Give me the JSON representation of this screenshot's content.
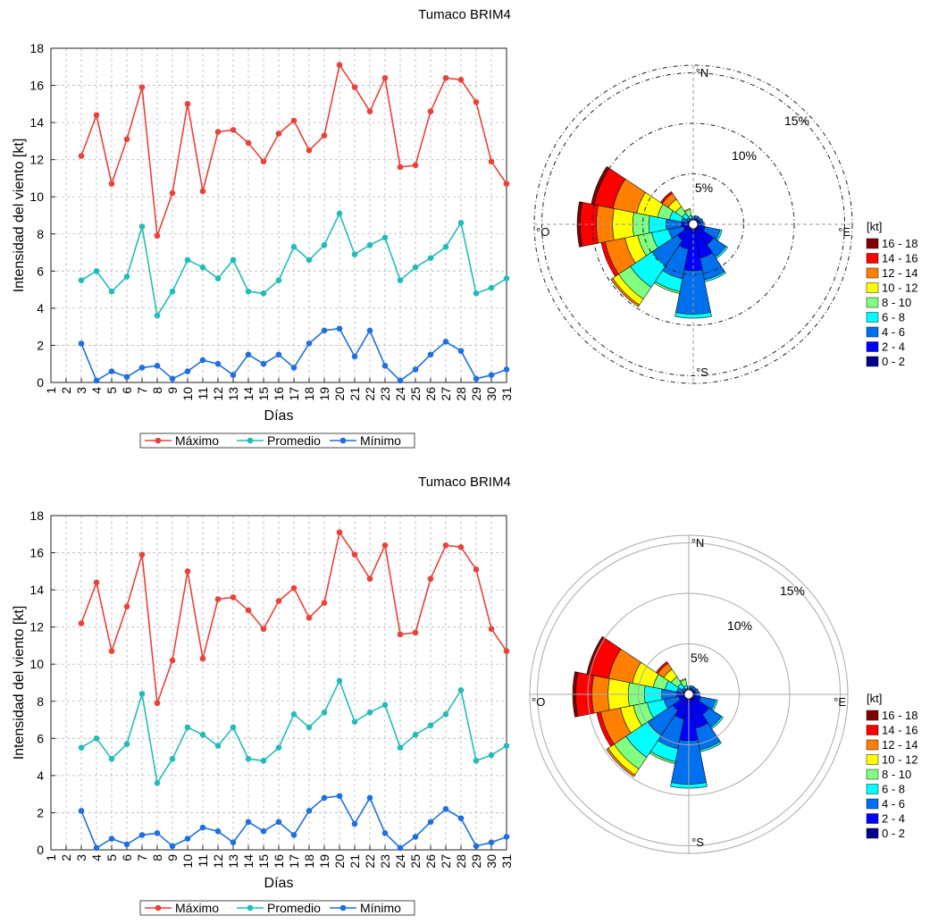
{
  "title": "Tumaco BRIM4",
  "colors": {
    "maximo": "#e8423a",
    "promedio": "#22bcb8",
    "minimo": "#1f6fe0"
  },
  "panels": [
    {
      "title": "Tumaco BRIM4",
      "rose_style": "dashed",
      "legend_labels": [
        "Máximo",
        "Promedio",
        "Mínimo"
      ],
      "rose_legend_title": "[kt]",
      "rose_legend_labels": [
        "16 - 18",
        "14 - 16",
        "12 - 14",
        "10 - 12",
        "8 - 10",
        "6 - 8",
        "4 - 6",
        "2 - 4",
        "0 - 2"
      ],
      "rose_ring_labels": [
        "5%",
        "10%",
        "15%"
      ],
      "rose_dir_labels": [
        "°N",
        "°E",
        "°S",
        "°O"
      ]
    },
    {
      "title": "Tumaco BRIM4",
      "rose_style": "solid",
      "legend_labels": [
        "Máximo",
        "Promedio",
        "Mínimo"
      ],
      "rose_legend_title": "[kt]",
      "rose_legend_labels": [
        "16 - 18",
        "14 - 16",
        "12 - 14",
        "10 - 12",
        "8 - 10",
        "6 - 8",
        "4 - 6",
        "2 - 4",
        "0 - 2"
      ],
      "rose_ring_labels": [
        "5%",
        "10%",
        "15%"
      ],
      "rose_dir_labels": [
        "°N",
        "°E",
        "°S",
        "°O"
      ]
    }
  ],
  "chart_data": [
    {
      "type": "line",
      "xlabel": "Días",
      "ylabel": "Intensidad del viento [kt]",
      "ylim": [
        0,
        18
      ],
      "yticks": [
        0,
        2,
        4,
        6,
        8,
        10,
        12,
        14,
        16,
        18
      ],
      "xlim": [
        1,
        31
      ],
      "x_tick_labels": [
        "1",
        "2",
        "3",
        "4",
        "5",
        "6",
        "7",
        "8",
        "9",
        "10",
        "11",
        "12",
        "13",
        "14",
        "15",
        "16",
        "17",
        "18",
        "19",
        "20",
        "21",
        "22",
        "23",
        "24",
        "25",
        "26",
        "27",
        "28",
        "29",
        "30",
        "31"
      ],
      "grid": true,
      "legend_placement": "bottom",
      "x": [
        3,
        4,
        5,
        6,
        7,
        8,
        9,
        10,
        11,
        12,
        13,
        14,
        15,
        16,
        17,
        18,
        19,
        20,
        21,
        22,
        23,
        24,
        25,
        26,
        27,
        28,
        29,
        30,
        31
      ],
      "series": [
        {
          "name": "Máximo",
          "values": [
            12.2,
            14.4,
            10.7,
            13.1,
            15.9,
            7.9,
            10.2,
            15.0,
            10.3,
            13.5,
            13.6,
            12.9,
            11.9,
            13.4,
            14.1,
            12.5,
            13.3,
            17.1,
            15.9,
            14.6,
            16.4,
            11.6,
            11.7,
            14.6,
            16.4,
            16.3,
            15.1,
            11.9,
            10.7
          ]
        },
        {
          "name": "Promedio",
          "values": [
            5.5,
            6.0,
            4.9,
            5.7,
            8.4,
            3.6,
            4.9,
            6.6,
            6.2,
            5.6,
            6.6,
            4.9,
            4.8,
            5.5,
            7.3,
            6.6,
            7.4,
            9.1,
            6.9,
            7.4,
            7.8,
            5.5,
            6.2,
            6.7,
            7.3,
            8.6,
            4.8,
            5.1,
            5.6
          ]
        },
        {
          "name": "Mínimo",
          "values": [
            2.1,
            0.1,
            0.6,
            0.3,
            0.8,
            0.9,
            0.2,
            0.6,
            1.2,
            1.0,
            0.4,
            1.5,
            1.0,
            1.5,
            0.8,
            2.1,
            2.8,
            2.9,
            1.4,
            2.8,
            0.9,
            0.1,
            0.7,
            1.5,
            2.2,
            1.7,
            0.2,
            0.4,
            0.7
          ]
        }
      ]
    },
    {
      "type": "rose",
      "radial_unit": "%",
      "rings": [
        5,
        10,
        15
      ],
      "bin_labels": [
        "0 - 2",
        "2 - 4",
        "4 - 6",
        "6 - 8",
        "8 - 10",
        "10 - 12",
        "12 - 14",
        "14 - 16",
        "16 - 18"
      ],
      "bin_colors": [
        "#00008f",
        "#0000ff",
        "#0070ee",
        "#00ffff",
        "#80ff80",
        "#ffff00",
        "#ff8000",
        "#ff0000",
        "#800000"
      ],
      "directions_deg": [
        0,
        22.5,
        45,
        67.5,
        90,
        112.5,
        135,
        157.5,
        180,
        202.5,
        225,
        247.5,
        270,
        292.5,
        315,
        337.5
      ],
      "cumulative_percent": [
        [
          0.3,
          0.6,
          0.8
        ],
        [
          0.3,
          0.6,
          0.9
        ],
        [
          0.3,
          0.6,
          0.9
        ],
        [
          0.3,
          0.7,
          1.0
        ],
        [
          0.3,
          0.7,
          1.1
        ],
        [
          0.4,
          1.2,
          2.7,
          2.9
        ],
        [
          0.6,
          2.4,
          3.9,
          4.1
        ],
        [
          0.6,
          3.4,
          5.6,
          5.8
        ],
        [
          0.6,
          4.6,
          8.9,
          9.3
        ],
        [
          0.5,
          2.5,
          5.5,
          6.8,
          7.0
        ],
        [
          0.4,
          1.9,
          4.9,
          7.5,
          8.9,
          9.6,
          9.8
        ],
        [
          0.3,
          1.0,
          2.5,
          4.2,
          5.6,
          6.9,
          8.9,
          9.3
        ],
        [
          0.3,
          1.2,
          2.7,
          4.4,
          6.0,
          8.0,
          9.6,
          11.2,
          11.5
        ],
        [
          0.3,
          0.6,
          1.2,
          2.4,
          3.6,
          5.7,
          8.1,
          10.0,
          10.3
        ],
        [
          0.3,
          0.5,
          0.8,
          1.3,
          2.1,
          3.0,
          3.7,
          3.9
        ],
        [
          0.3,
          0.4,
          0.6,
          0.9,
          1.5,
          1.6
        ]
      ]
    },
    {
      "type": "line",
      "xlabel": "Días",
      "ylabel": "Intensidad del viento [kt]",
      "ylim": [
        0,
        18
      ],
      "yticks": [
        0,
        2,
        4,
        6,
        8,
        10,
        12,
        14,
        16,
        18
      ],
      "xlim": [
        1,
        31
      ],
      "x_tick_labels": [
        "1",
        "2",
        "3",
        "4",
        "5",
        "6",
        "7",
        "8",
        "9",
        "10",
        "11",
        "12",
        "13",
        "14",
        "15",
        "16",
        "17",
        "18",
        "19",
        "20",
        "21",
        "22",
        "23",
        "24",
        "25",
        "26",
        "27",
        "28",
        "29",
        "30",
        "31"
      ],
      "grid": true,
      "legend_placement": "bottom",
      "x": [
        3,
        4,
        5,
        6,
        7,
        8,
        9,
        10,
        11,
        12,
        13,
        14,
        15,
        16,
        17,
        18,
        19,
        20,
        21,
        22,
        23,
        24,
        25,
        26,
        27,
        28,
        29,
        30,
        31
      ],
      "series": [
        {
          "name": "Máximo",
          "values": [
            12.2,
            14.4,
            10.7,
            13.1,
            15.9,
            7.9,
            10.2,
            15.0,
            10.3,
            13.5,
            13.6,
            12.9,
            11.9,
            13.4,
            14.1,
            12.5,
            13.3,
            17.1,
            15.9,
            14.6,
            16.4,
            11.6,
            11.7,
            14.6,
            16.4,
            16.3,
            15.1,
            11.9,
            10.7
          ]
        },
        {
          "name": "Promedio",
          "values": [
            5.5,
            6.0,
            4.9,
            5.7,
            8.4,
            3.6,
            4.9,
            6.6,
            6.2,
            5.6,
            6.6,
            4.9,
            4.8,
            5.5,
            7.3,
            6.6,
            7.4,
            9.1,
            6.9,
            7.4,
            7.8,
            5.5,
            6.2,
            6.7,
            7.3,
            8.6,
            4.8,
            5.1,
            5.6
          ]
        },
        {
          "name": "Mínimo",
          "values": [
            2.1,
            0.1,
            0.6,
            0.3,
            0.8,
            0.9,
            0.2,
            0.6,
            1.2,
            1.0,
            0.4,
            1.5,
            1.0,
            1.5,
            0.8,
            2.1,
            2.8,
            2.9,
            1.4,
            2.8,
            0.9,
            0.1,
            0.7,
            1.5,
            2.2,
            1.7,
            0.2,
            0.4,
            0.7
          ]
        }
      ]
    },
    {
      "type": "rose",
      "radial_unit": "%",
      "rings": [
        5,
        10,
        15
      ],
      "bin_labels": [
        "0 - 2",
        "2 - 4",
        "4 - 6",
        "6 - 8",
        "8 - 10",
        "10 - 12",
        "12 - 14",
        "14 - 16",
        "16 - 18"
      ],
      "bin_colors": [
        "#00008f",
        "#0000ff",
        "#0070ee",
        "#00ffff",
        "#80ff80",
        "#ffff00",
        "#ff8000",
        "#ff0000",
        "#800000"
      ],
      "directions_deg": [
        0,
        22.5,
        45,
        67.5,
        90,
        112.5,
        135,
        157.5,
        180,
        202.5,
        225,
        247.5,
        270,
        292.5,
        315,
        337.5
      ],
      "cumulative_percent": [
        [
          0.3,
          0.6,
          0.8
        ],
        [
          0.3,
          0.6,
          0.9
        ],
        [
          0.3,
          0.6,
          0.9
        ],
        [
          0.3,
          0.7,
          1.0
        ],
        [
          0.3,
          0.7,
          1.1
        ],
        [
          0.4,
          1.2,
          2.7,
          2.9
        ],
        [
          0.6,
          2.4,
          3.9,
          4.1
        ],
        [
          0.6,
          3.4,
          5.6,
          5.8
        ],
        [
          0.6,
          4.6,
          8.9,
          9.3
        ],
        [
          0.5,
          2.5,
          5.5,
          6.8,
          7.0
        ],
        [
          0.4,
          1.9,
          4.9,
          7.5,
          8.9,
          9.6,
          9.8
        ],
        [
          0.3,
          1.0,
          2.5,
          4.2,
          5.6,
          6.9,
          8.9,
          9.3
        ],
        [
          0.3,
          1.2,
          2.7,
          4.4,
          6.0,
          8.0,
          9.6,
          11.2,
          11.5
        ],
        [
          0.3,
          0.6,
          1.2,
          2.4,
          3.6,
          5.7,
          8.1,
          10.0,
          10.3
        ],
        [
          0.3,
          0.5,
          0.8,
          1.3,
          2.1,
          3.0,
          3.7,
          3.9
        ],
        [
          0.3,
          0.4,
          0.6,
          0.9,
          1.5,
          1.6
        ]
      ]
    }
  ]
}
